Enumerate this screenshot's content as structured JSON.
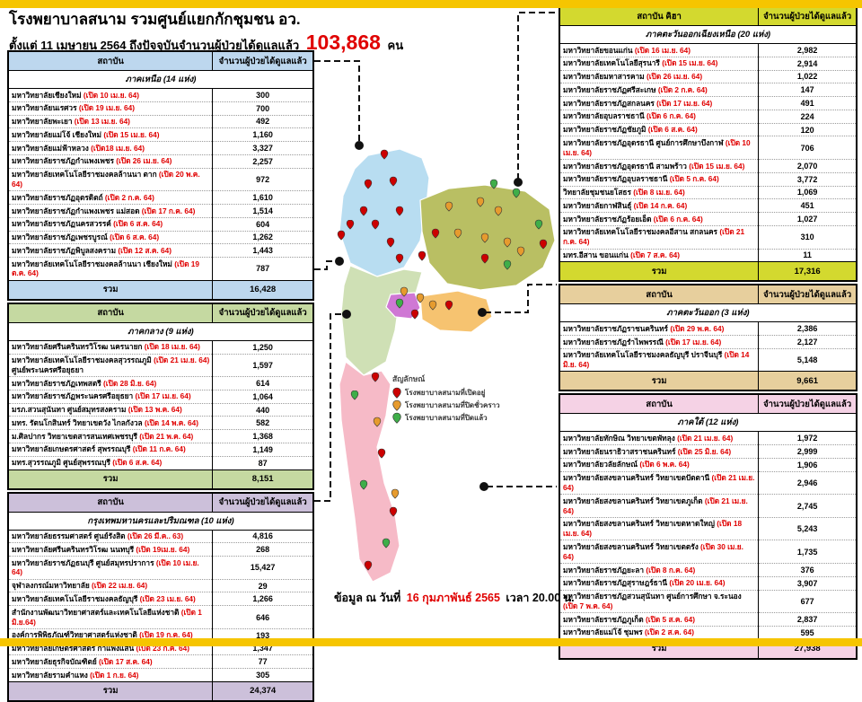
{
  "page": {
    "title": "โรงพยาบาลสนาม รวมศูนย์แยกกักชุมชน อว.",
    "subtitle": "ตั้งแต่  11 เมษายน 2564 ถึงปัจจุบันจำนวนผู้ป่วยได้ดูแลแล้ว",
    "total_count": "103,868",
    "total_unit": "คน",
    "footer_prefix": "ข้อมูล ณ วันที่",
    "footer_date": "16 กุมภาพันธ์ 2565",
    "footer_suffix": "เวลา  20.00 น."
  },
  "columns": {
    "institution": "สถาบัน",
    "count": "จำนวนผู้ป่วยได้ดูแลแล้ว",
    "total_label": "รวม"
  },
  "tables": [
    {
      "id": "north",
      "side": "left",
      "header_institution": "สถาบัน",
      "header_bg": "#bdd7ee",
      "section": "ภาคเหนือ (14 แห่ง)",
      "total": "16,428",
      "rows": [
        [
          "มหาวิทยาลัยเชียงใหม่",
          "(เปิด 10 เม.ย. 64)",
          "300",
          ""
        ],
        [
          "มหาวิทยาลัยนเรศวร",
          "(เปิด 19 เม.ย.  64)",
          "700",
          ""
        ],
        [
          "มหาวิทยาลัยพะเยา",
          "(เปิด 13 เม.ย. 64)",
          "492",
          ""
        ],
        [
          "มหาวิทยาลัยแม่โจ้  เชียงใหม่",
          "(เปิด 15 เม.ย. 64)",
          "1,160",
          ""
        ],
        [
          "มหาวิทยาลัยแม่ฟ้าหลวง",
          "(เปิด18 เม.ย. 64)",
          "3,327",
          ""
        ],
        [
          "มหาวิทยาลัยราชภัฏกำแพงเพชร",
          "(เปิด 26 เม.ย. 64)",
          "2,257",
          ""
        ],
        [
          "มหาวิทยาลัยเทคโนโลยีราชมงคลล้านนา  ตาก",
          "(เปิด 20 พ.ค. 64)",
          "972",
          ""
        ],
        [
          "มหาวิทยาลัยราชภัฏอุตรดิตถ์",
          "(เปิด 2 ก.ค. 64)",
          "1,610",
          ""
        ],
        [
          "มหาวิทยาลัยราชภัฏกำแพงเพชร  แม่สอด",
          "(เปิด 17 ก.ค.  64)",
          "1,514",
          ""
        ],
        [
          "มหาวิทยาลัยราชภัฏนครสวรรค์",
          "(เปิด 6 ส.ค. 64)",
          "604",
          ""
        ],
        [
          "มหาวิทยาลัยราชภัฏเพชรบูรณ์",
          "(เปิด 6 ส.ค. 64)",
          "1,262",
          ""
        ],
        [
          "มหาวิทยาลัยราชภัฏพิบูลสงคราม",
          "(เปิด 12 ส.ค. 64)",
          "1,443",
          ""
        ],
        [
          "มหาวิทยาลัยเทคโนโลยีราชมงคลล้านนา เชียงใหม่",
          "(เปิด 19 ต.ค. 64)",
          "787",
          ""
        ]
      ]
    },
    {
      "id": "central",
      "side": "left",
      "header_institution": "สถาบัน",
      "header_bg": "#c5d9a1",
      "section": "ภาคกลาง (9 แห่ง)",
      "total": "8,151",
      "rows": [
        [
          "มหาวิทยาลัยศรีนครินทรวิโรฒ นครนายก",
          "(เปิด 18 เม.ย. 64)",
          "1,250",
          ""
        ],
        [
          "มหาวิทยาลัยเทคโนโลยีราชมงคลสุวรรณภูมิ",
          "(เปิด 21 เม.ย. 64)",
          "1,597",
          "ศูนย์พระนครศรีอยุธยา"
        ],
        [
          "มหาวิทยาลัยราชภัฏเทพสตรี",
          "(เปิด 28 มิ.ย. 64)",
          "614",
          ""
        ],
        [
          "มหาวิทยาลัยราชภัฏพระนครศรีอยุธยา",
          "(เปิด 17 เม.ย. 64)",
          "1,064",
          ""
        ],
        [
          "มรภ.สวนสุนันทา ศูนย์สมุทรสงคราม",
          "(เปิด 13 พ.ค. 64)",
          "440",
          ""
        ],
        [
          "มทร. รัตนโกสินทร์  วิทยาเขตวัง ไกลกังวล",
          "(เปิด 14 พ.ค. 64)",
          "582",
          ""
        ],
        [
          "ม.ศิลปากร วิทยาเขตสารสนเทศเพชรบุรี",
          "(เปิด 21 พ.ค. 64)",
          "1,368",
          ""
        ],
        [
          "มหาวิทยาลัยเกษตรศาสตร์  สุพรรณบุรี",
          "(เปิด 11 ก.ค. 64)",
          "1,149",
          ""
        ],
        [
          "มทร.สุวรรณภูมิ ศูนย์สุพรรณบุรี",
          "(เปิด 6 ส.ค. 64)",
          "87",
          ""
        ]
      ]
    },
    {
      "id": "bangkok",
      "side": "left",
      "header_institution": "สถาบัน",
      "header_bg": "#ccc0da",
      "section": "กรุงเทพมหานครและปริมณฑล (10 แห่ง)",
      "total": "24,374",
      "rows": [
        [
          "มหาวิทยาลัยธรรมศาสตร์ ศูนย์รังสิต",
          "(เปิด 26 มี.ค.. 63)",
          "4,816",
          ""
        ],
        [
          "มหาวิทยาลัยศรีนครินทรวิโรฒ นนทบุรี",
          "(เปิด 19เม.ย. 64)",
          "268",
          ""
        ],
        [
          "มหาวิทยาลัยราชภัฏธนบุรี ศูนย์สมุทรปราการ",
          "(เปิด 10 เม.ย. 64)",
          "15,427",
          ""
        ],
        [
          "จุฬาลงกรณ์มหาวิทยาลัย",
          "(เปิด 22 เม.ย. 64)",
          "29",
          ""
        ],
        [
          "มหาวิทยาลัยเทคโนโลยีราชมงคลธัญบุรี",
          "(เปิด 23 เม.ย. 64)",
          "1,266",
          ""
        ],
        [
          "สำนักงานพัฒนาวิทยาศาสตร์และเทคโนโลยีแห่งชาติ",
          "(เปิด 1 มิ.ย.64)",
          "646",
          ""
        ],
        [
          "องค์การพิพิธภัณฑ์วิทยาศาสตร์แห่งชาติ",
          "(เปิด  19 ก.ค. 64)",
          "193",
          ""
        ],
        [
          "มหาวิทยาลัยเกษตรศาสตร์  กำแพงแสน",
          "(เปิด 23 ก.ค. 64)",
          "1,347",
          ""
        ],
        [
          "มหาวิทยาลัยธุรกิจบัณฑิตย์",
          "(เปิด 17 ส.ค. 64)",
          "77",
          ""
        ],
        [
          "มหาวิทยาลัยรามคำแหง",
          "(เปิด 1 ก.ย. 64)",
          "305",
          ""
        ]
      ]
    },
    {
      "id": "northeast",
      "side": "right",
      "header_institution": "สถาบัน คิฮา",
      "header_bg": "#d3d92f",
      "section": "ภาคตะวันออกเฉียงเหนือ  (20 แห่ง)",
      "total": "17,316",
      "rows": [
        [
          "มหาวิทยาลัยขอนแก่น",
          "(เปิด 16 เม.ย. 64)",
          "2,982",
          ""
        ],
        [
          "มหาวิทยาลัยเทคโนโลยีสุรนารี",
          "(เปิด 15 เม.ย. 64)",
          "2,914",
          ""
        ],
        [
          "มหาวิทยาลัยมหาสารคาม",
          "(เปิด 26 เม.ย. 64)",
          "1,022",
          ""
        ],
        [
          "มหาวิทยาลัยราชภัฏศรีสะเกษ",
          "(เปิด 2 ก.ค. 64)",
          "147",
          ""
        ],
        [
          "มหาวิทยาลัยราชภัฏสกลนคร",
          "(เปิด 17 เม.ย. 64)",
          "491",
          ""
        ],
        [
          "มหาวิทยาลัยอุบลราชธานี",
          "(เปิด 6 ก.ค. 64)",
          "224",
          ""
        ],
        [
          "มหาวิทยาลัยราชภัฏชัยภูมิ",
          "(เปิด 6 ส.ค. 64)",
          "120",
          ""
        ],
        [
          "มหาวิทยาลัยราชภัฏอุดรธานี ศูนย์การศึกษาบึงกาฬ",
          "(เปิด 10 เม.ย. 64)",
          "706",
          ""
        ],
        [
          "มหาวิทยาลัยราชภัฏอุดรธานี สามพร้าว",
          "(เปิด 15 เม.ย. 64)",
          "2,070",
          ""
        ],
        [
          "มหาวิทยาลัยราชภัฏอุบลราชธานี",
          "(เปิด 5 ก.ค. 64)",
          "3,772",
          ""
        ],
        [
          "วิทยาลัยชุมชนยโสธร",
          "(เปิด 8 เม.ย. 64)",
          "1,069",
          ""
        ],
        [
          "มหาวิทยาลัยกาฬสินธุ์",
          "(เปิด 14 ก.ค. 64)",
          "451",
          ""
        ],
        [
          "มหาวิทยาลัยราชภัฏร้อยเอ็ด",
          "(เปิด 6 ก.ค. 64)",
          "1,027",
          ""
        ],
        [
          "มหาวิทยาลัยเทคโนโลยีราชมงคลอีสาน สกลนคร",
          "(เปิด 21 ก.ค. 64)",
          "310",
          ""
        ],
        [
          "มทร.อีสาน ขอนแก่น",
          "(เปิด 7 ส.ค. 64)",
          "11",
          ""
        ]
      ]
    },
    {
      "id": "east",
      "side": "right",
      "header_institution": "สถาบัน",
      "header_bg": "#e7cf9d",
      "section": "ภาคตะวันออก (3 แห่ง)",
      "total": "9,661",
      "rows": [
        [
          "มหาวิทยาลัยราชภัฏราชนครินทร์",
          "(เปิด 29 พ.ค. 64)",
          "2,386",
          ""
        ],
        [
          "มหาวิทยาลัยราชภัฏรำไพพรรณี",
          "(เปิด 17 เม.ย. 64)",
          "2,127",
          ""
        ],
        [
          "มหาวิทยาลัยเทคโนโลยีราชมงคลธัญบุรี ปราจีนบุรี",
          "(เปิด 14 มิ.ย. 64)",
          "5,148",
          ""
        ]
      ]
    },
    {
      "id": "south",
      "side": "right",
      "header_institution": "สถาบัน",
      "header_bg": "#f5d2e5",
      "section": "ภาคใต้  (12 แห่ง)",
      "total": "27,938",
      "rows": [
        [
          "มหาวิทยาลัยทักษิณ  วิทยาเขตพัทลุง",
          "(เปิด 21 เม.ย.  64)",
          "1,972",
          ""
        ],
        [
          "มหาวิทยาลัยนราธิวาสราชนครินทร์",
          "(เปิด 25 มิ.ย. 64)",
          "2,999",
          ""
        ],
        [
          "มหาวิทยาลัยวลัยลักษณ์",
          "(เปิด 6 พ.ค. 64)",
          "1,906",
          ""
        ],
        [
          "มหาวิทยาลัยสงขลานครินทร์  วิทยาเขตปัตตานี",
          "(เปิด 21 เม.ย. 64)",
          "2,946",
          ""
        ],
        [
          "มหาวิทยาลัยสงขลานครินทร์  วิทยาเขตภูเก็ต",
          "(เปิด 21 เม.ย. 64)",
          "2,745",
          ""
        ],
        [
          "มหาวิทยาลัยสงขลานครินทร์  วิทยาเขตหาดใหญ่",
          "(เปิด 18 เม.ย. 64)",
          "5,243",
          ""
        ],
        [
          "มหาวิทยาลัยสงขลานครินทร์  วิทยาเขตตรัง",
          "(เปิด  30 เม.ย. 64)",
          "1,735",
          ""
        ],
        [
          "มหาวิทยาลัยราชภัฏยะลา",
          "(เปิด  8 ก.ค. 64)",
          "376",
          ""
        ],
        [
          "มหาวิทยาลัยราชภัฏสุราษฎร์ธานี",
          "(เปิด 20 เม.ย. 64)",
          "3,907",
          ""
        ],
        [
          "มหาวิทยาลัยราชภัฏสวนสุนันทา  ศูนย์การศึกษา  จ.ระนอง",
          "(เปิด 7 พ.ค. 64)",
          "677",
          ""
        ],
        [
          "มหาวิทยาลัยราชภัฏภูเก็ต",
          "(เปิด 5 ส.ค.  64)",
          "2,837",
          ""
        ],
        [
          "มหาวิทยาลัยแม่โจ้  ชุมพร",
          "(เปิด 2 ส.ค. 64)",
          "595",
          ""
        ]
      ]
    }
  ],
  "legend": {
    "title": "สัญลักษณ์",
    "items": [
      {
        "color": "#cc0000",
        "label": "โรงพยาบาลสนามที่เปิดอยู่"
      },
      {
        "color": "#e69b2e",
        "label": "โรงพยาบาลสนามที่ปิดชั่วคราว"
      },
      {
        "color": "#3fae49",
        "label": "โรงพยาบาลสนามที่ปิดแล้ว"
      }
    ]
  },
  "map": {
    "region_colors": {
      "north": "#b8ddf1",
      "northeast": "#b9bf63",
      "central": "#cfe0b5",
      "bangkok": "#cf78d4",
      "east": "#f6c370",
      "south": "#f6bac7"
    },
    "marker_colors": {
      "r": "#cc0000",
      "o": "#e69b2e",
      "g": "#3fae49"
    },
    "pins": [
      [
        78,
        62,
        "r"
      ],
      [
        60,
        95,
        "r"
      ],
      [
        88,
        92,
        "r"
      ],
      [
        55,
        125,
        "r"
      ],
      [
        95,
        125,
        "r"
      ],
      [
        40,
        140,
        "r"
      ],
      [
        68,
        140,
        "r"
      ],
      [
        85,
        160,
        "r"
      ],
      [
        30,
        152,
        "r"
      ],
      [
        95,
        178,
        "r"
      ],
      [
        150,
        120,
        "o"
      ],
      [
        185,
        115,
        "o"
      ],
      [
        205,
        125,
        "o"
      ],
      [
        160,
        150,
        "o"
      ],
      [
        190,
        155,
        "o"
      ],
      [
        215,
        160,
        "o"
      ],
      [
        230,
        170,
        "o"
      ],
      [
        200,
        95,
        "g"
      ],
      [
        225,
        105,
        "g"
      ],
      [
        250,
        140,
        "g"
      ],
      [
        215,
        185,
        "g"
      ],
      [
        135,
        150,
        "r"
      ],
      [
        120,
        175,
        "r"
      ],
      [
        190,
        178,
        "r"
      ],
      [
        255,
        162,
        "r"
      ],
      [
        100,
        215,
        "o"
      ],
      [
        118,
        222,
        "o"
      ],
      [
        132,
        230,
        "o"
      ],
      [
        95,
        228,
        "g"
      ],
      [
        112,
        240,
        "r"
      ],
      [
        150,
        230,
        "r"
      ],
      [
        68,
        310,
        "r"
      ],
      [
        75,
        395,
        "r"
      ],
      [
        88,
        460,
        "r"
      ],
      [
        60,
        520,
        "r"
      ],
      [
        45,
        330,
        "g"
      ],
      [
        55,
        430,
        "g"
      ],
      [
        80,
        495,
        "g"
      ],
      [
        70,
        360,
        "o"
      ],
      [
        90,
        440,
        "o"
      ]
    ]
  }
}
